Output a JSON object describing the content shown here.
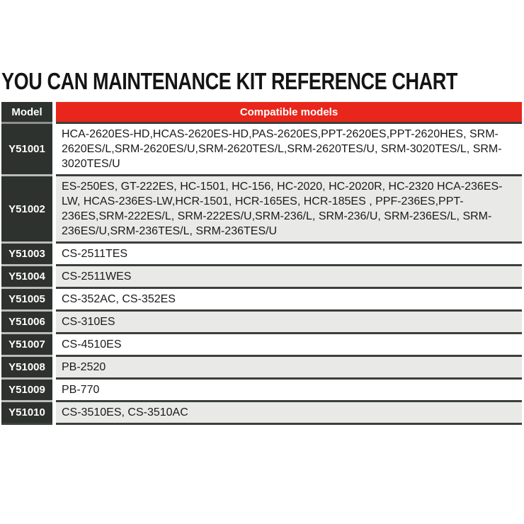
{
  "title": "YOU CAN MAINTENANCE KIT REFERENCE CHART",
  "table": {
    "headers": {
      "model": "Model",
      "compatible": "Compatible models"
    },
    "rows": [
      {
        "model": "Y51001",
        "compatible": "HCA-2620ES-HD,HCAS-2620ES-HD,PAS-2620ES,PPT-2620ES,PPT-2620HES, SRM-2620ES/L,SRM-2620ES/U,SRM-2620TES/L,SRM-2620TES/U, SRM-3020TES/L, SRM-3020TES/U"
      },
      {
        "model": "Y51002",
        "compatible": "ES-250ES, GT-222ES, HC-1501, HC-156, HC-2020, HC-2020R, HC-2320 HCA-236ES-LW, HCAS-236ES-LW,HCR-1501, HCR-165ES, HCR-185ES , PPF-236ES,PPT-236ES,SRM-222ES/L, SRM-222ES/U,SRM-236/L, SRM-236/U, SRM-236ES/L, SRM-236ES/U,SRM-236TES/L, SRM-236TES/U"
      },
      {
        "model": "Y51003",
        "compatible": "CS-2511TES"
      },
      {
        "model": "Y51004",
        "compatible": "CS-2511WES"
      },
      {
        "model": "Y51005",
        "compatible": "CS-352AC, CS-352ES"
      },
      {
        "model": "Y51006",
        "compatible": "CS-310ES"
      },
      {
        "model": "Y51007",
        "compatible": "CS-4510ES"
      },
      {
        "model": "Y51008",
        "compatible": "PB-2520"
      },
      {
        "model": "Y51009",
        "compatible": "PB-770"
      },
      {
        "model": "Y51010",
        "compatible": "CS-3510ES, CS-3510AC"
      }
    ]
  },
  "colors": {
    "header_red": "#e9261b",
    "model_cell_bg": "#2d322e",
    "row_bg": "#ffffff",
    "row_alt_bg": "#e9eae8",
    "separator_dark": "#3b403b",
    "title_color": "#141414"
  }
}
